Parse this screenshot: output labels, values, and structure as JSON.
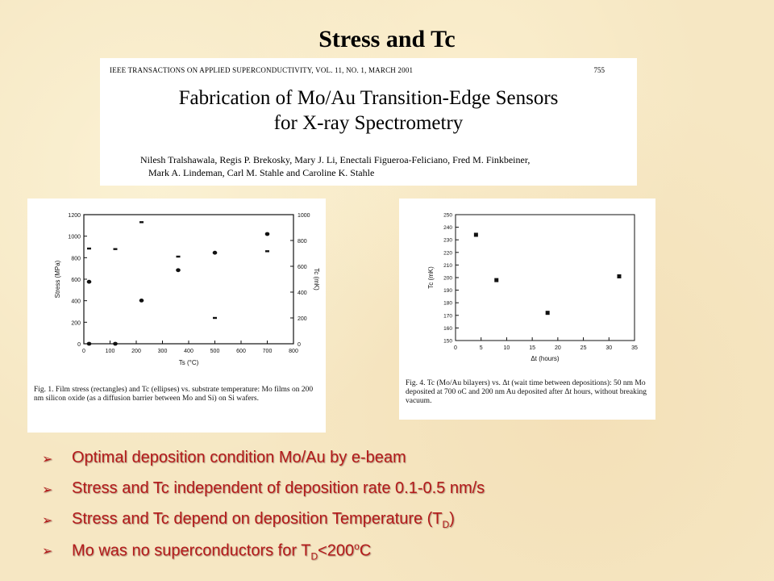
{
  "slide_title": "Stress and Tc",
  "paper": {
    "journal": "IEEE TRANSACTIONS ON APPLIED SUPERCONDUCTIVITY, VOL. 11, NO. 1, MARCH 2001",
    "page": "755",
    "title_line1": "Fabrication of Mo/Au Transition-Edge Sensors",
    "title_line2": "for X-ray Spectrometry",
    "authors_line1": "Nilesh Tralshawala, Regis P. Brekosky, Mary J. Li, Enectali Figueroa-Feliciano, Fred M. Finkbeiner,",
    "authors_line2": "Mark A. Lindeman, Carl M. Stahle and Caroline K. Stahle"
  },
  "figure1": {
    "caption": "Fig. 1. Film stress (rectangles) and Tc (ellipses) vs. substrate temperature: Mo films on 200 nm silicon oxide (as a diffusion barrier between Mo and Si) on Si wafers."
  },
  "figure2": {
    "caption": "Fig. 4. Tc (Mo/Au bilayers) vs. Δt (wait time between depositions): 50 nm Mo deposited at 700 oC and 200 nm Au deposited after Δt hours, without breaking vacuum."
  },
  "bullets": [
    {
      "text": "Optimal deposition condition Mo/Au by e-beam"
    },
    {
      "text": "Stress and Tc independent of deposition rate 0.1-0.5 nm/s"
    },
    {
      "pre": "Stress and Tc depend on deposition Temperature (T",
      "sub": "D",
      "post": ")"
    },
    {
      "pre": "Mo was no superconductors for T",
      "sub": "D",
      "mid": "<200",
      "sup": "o",
      "post": "C"
    }
  ],
  "chart_data": [
    {
      "type": "scatter",
      "xlabel": "Ts (°C)",
      "ylabel": "Stress (MPa)",
      "y2label": "Tc (mK)",
      "xlim": [
        0,
        800
      ],
      "ylim": [
        0,
        1200
      ],
      "y2lim": [
        0,
        1000
      ],
      "xticks": [
        "0",
        "100",
        "200",
        "300",
        "400",
        "500",
        "600",
        "700",
        "800"
      ],
      "yticks": [
        "0",
        "200",
        "400",
        "600",
        "800",
        "1000",
        "1200"
      ],
      "y2ticks": [
        "0",
        "200",
        "400",
        "600",
        "800",
        "1000"
      ],
      "series": [
        {
          "marker": "rect",
          "axis": "left",
          "points": [
            [
              20,
              885
            ],
            [
              120,
              880
            ],
            [
              220,
              1130
            ],
            [
              360,
              810
            ],
            [
              500,
              240
            ],
            [
              700,
              860
            ]
          ]
        },
        {
          "marker": "ellipse",
          "axis": "right",
          "points": [
            [
              20,
              480
            ],
            [
              20,
              0
            ],
            [
              120,
              0
            ],
            [
              220,
              335
            ],
            [
              360,
              570
            ],
            [
              500,
              705
            ],
            [
              700,
              850
            ]
          ]
        }
      ],
      "colors": {
        "ink": "#111111"
      }
    },
    {
      "type": "scatter",
      "xlabel": "Δt (hours)",
      "ylabel": "Tc (mK)",
      "xlim": [
        0,
        35
      ],
      "ylim": [
        150,
        250
      ],
      "xticks": [
        "0",
        "5",
        "10",
        "15",
        "20",
        "25",
        "30",
        "35"
      ],
      "yticks": [
        "150",
        "160",
        "170",
        "180",
        "190",
        "200",
        "210",
        "220",
        "230",
        "240",
        "250"
      ],
      "series": [
        {
          "marker": "square",
          "points": [
            [
              4,
              234
            ],
            [
              8,
              198
            ],
            [
              18,
              172
            ],
            [
              32,
              201
            ]
          ]
        }
      ],
      "colors": {
        "ink": "#111111"
      }
    }
  ],
  "colors": {
    "bullet_text": "#b31a1a",
    "background": "#f6e7c3"
  }
}
